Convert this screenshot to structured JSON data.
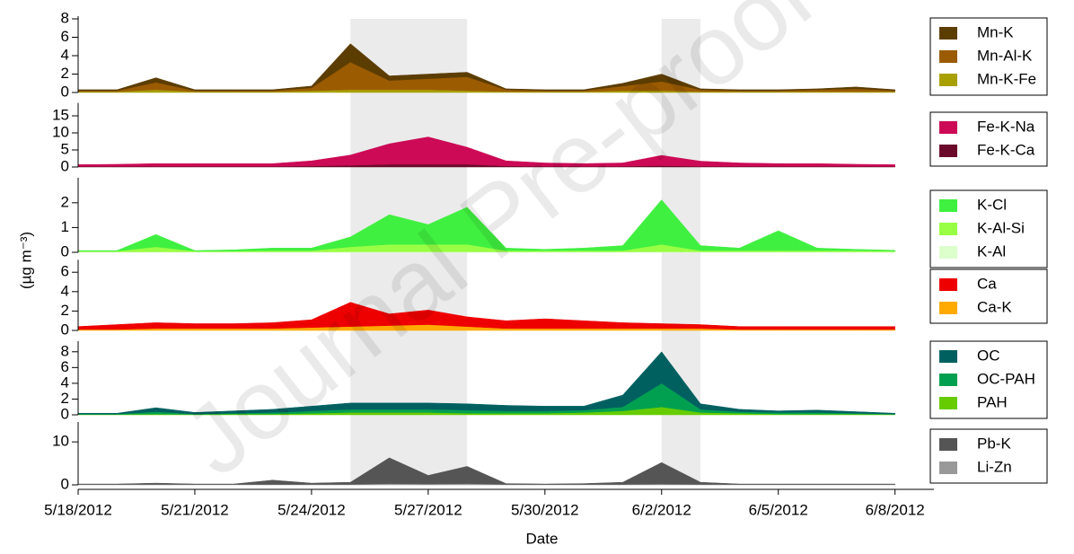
{
  "watermark": "Journal Pre-proof",
  "chart_data": [
    {
      "type": "area",
      "stacked": true,
      "ylim": [
        0,
        8
      ],
      "yticks": [
        0,
        2,
        4,
        6,
        8
      ],
      "x": [
        "5/18/2012",
        "5/19/2012",
        "5/20/2012",
        "5/21/2012",
        "5/22/2012",
        "5/23/2012",
        "5/24/2012",
        "5/25/2012",
        "5/26/2012",
        "5/27/2012",
        "5/28/2012",
        "5/29/2012",
        "5/30/2012",
        "5/31/2012",
        "6/1/2012",
        "6/2/2012",
        "6/3/2012",
        "6/4/2012",
        "6/5/2012",
        "6/6/2012",
        "6/7/2012",
        "6/8/2012"
      ],
      "xlim": [
        "5/18/2012",
        "6/9/2012"
      ],
      "shaded": [
        [
          "5/25/2012",
          "5/28/2012"
        ],
        [
          "6/2/2012",
          "6/3/2012"
        ]
      ],
      "series": [
        {
          "name": "Mn-K",
          "color": "#5c3d00",
          "values": [
            0.1,
            0.1,
            0.5,
            0.1,
            0.1,
            0.1,
            0.2,
            2.0,
            0.5,
            0.5,
            0.5,
            0.1,
            0.1,
            0.1,
            0.3,
            0.8,
            0.1,
            0.1,
            0.1,
            0.1,
            0.2,
            0.1
          ]
        },
        {
          "name": "Mn-Al-K",
          "color": "#9b5b00",
          "values": [
            0.1,
            0.1,
            0.8,
            0.1,
            0.1,
            0.1,
            0.3,
            3.0,
            1.0,
            1.2,
            1.5,
            0.2,
            0.1,
            0.1,
            0.5,
            1.0,
            0.2,
            0.1,
            0.1,
            0.2,
            0.3,
            0.1
          ]
        },
        {
          "name": "Mn-K-Fe",
          "color": "#a8a000",
          "values": [
            0.1,
            0.1,
            0.3,
            0.1,
            0.1,
            0.1,
            0.2,
            0.3,
            0.3,
            0.3,
            0.2,
            0.1,
            0.1,
            0.1,
            0.2,
            0.2,
            0.1,
            0.1,
            0.1,
            0.1,
            0.1,
            0.1
          ]
        }
      ]
    },
    {
      "type": "area",
      "stacked": true,
      "ylim": [
        0,
        18
      ],
      "yticks": [
        0,
        5,
        10,
        15
      ],
      "x": [
        "5/18/2012",
        "5/19/2012",
        "5/20/2012",
        "5/21/2012",
        "5/22/2012",
        "5/23/2012",
        "5/24/2012",
        "5/25/2012",
        "5/26/2012",
        "5/27/2012",
        "5/28/2012",
        "5/29/2012",
        "5/30/2012",
        "5/31/2012",
        "6/1/2012",
        "6/2/2012",
        "6/3/2012",
        "6/4/2012",
        "6/5/2012",
        "6/6/2012",
        "6/7/2012",
        "6/8/2012"
      ],
      "xlim": [
        "5/18/2012",
        "6/9/2012"
      ],
      "shaded": [
        [
          "5/25/2012",
          "5/28/2012"
        ],
        [
          "6/2/2012",
          "6/3/2012"
        ]
      ],
      "series": [
        {
          "name": "Fe-K-Na",
          "color": "#cc0a55",
          "values": [
            0.5,
            0.6,
            0.8,
            0.8,
            0.8,
            0.8,
            1.5,
            3,
            6,
            8,
            5,
            1.5,
            1.0,
            0.8,
            1.0,
            3,
            1.5,
            1.0,
            0.8,
            0.8,
            0.6,
            0.5
          ]
        },
        {
          "name": "Fe-K-Ca",
          "color": "#6b0a2a",
          "values": [
            0.2,
            0.2,
            0.2,
            0.2,
            0.2,
            0.2,
            0.3,
            0.5,
            0.8,
            0.8,
            0.8,
            0.3,
            0.2,
            0.2,
            0.2,
            0.4,
            0.2,
            0.2,
            0.2,
            0.2,
            0.2,
            0.2
          ]
        }
      ]
    },
    {
      "type": "area",
      "stacked": true,
      "ylim": [
        0,
        2.9
      ],
      "yticks": [
        0,
        1,
        2
      ],
      "ylabel": "(µg m⁻³)",
      "x": [
        "5/18/2012",
        "5/19/2012",
        "5/20/2012",
        "5/21/2012",
        "5/22/2012",
        "5/23/2012",
        "5/24/2012",
        "5/25/2012",
        "5/26/2012",
        "5/27/2012",
        "5/28/2012",
        "5/29/2012",
        "5/30/2012",
        "5/31/2012",
        "6/1/2012",
        "6/2/2012",
        "6/3/2012",
        "6/4/2012",
        "6/5/2012",
        "6/6/2012",
        "6/7/2012",
        "6/8/2012"
      ],
      "xlim": [
        "5/18/2012",
        "6/9/2012"
      ],
      "shaded": [
        [
          "5/25/2012",
          "5/28/2012"
        ],
        [
          "6/2/2012",
          "6/3/2012"
        ]
      ],
      "series": [
        {
          "name": "K-Cl",
          "color": "#40f040",
          "values": [
            0.02,
            0.02,
            0.5,
            0.02,
            0.05,
            0.1,
            0.1,
            0.4,
            1.2,
            0.8,
            1.5,
            0.1,
            0.05,
            0.1,
            0.2,
            1.8,
            0.2,
            0.1,
            0.8,
            0.1,
            0.05,
            0.03
          ]
        },
        {
          "name": "K-Al-Si",
          "color": "#99ff44",
          "values": [
            0.03,
            0.03,
            0.2,
            0.03,
            0.03,
            0.05,
            0.05,
            0.2,
            0.3,
            0.3,
            0.3,
            0.05,
            0.05,
            0.05,
            0.05,
            0.3,
            0.05,
            0.05,
            0.05,
            0.05,
            0.05,
            0.03
          ]
        },
        {
          "name": "K-Al",
          "color": "#ddffcc",
          "values": [
            0.02,
            0.02,
            0.02,
            0.02,
            0.02,
            0.02,
            0.02,
            0.02,
            0.02,
            0.02,
            0.02,
            0.02,
            0.02,
            0.02,
            0.02,
            0.02,
            0.02,
            0.02,
            0.02,
            0.02,
            0.02,
            0.02
          ]
        }
      ]
    },
    {
      "type": "area",
      "stacked": true,
      "ylim": [
        0,
        7
      ],
      "yticks": [
        0,
        2,
        4,
        6
      ],
      "x": [
        "5/18/2012",
        "5/19/2012",
        "5/20/2012",
        "5/21/2012",
        "5/22/2012",
        "5/23/2012",
        "5/24/2012",
        "5/25/2012",
        "5/26/2012",
        "5/27/2012",
        "5/28/2012",
        "5/29/2012",
        "5/30/2012",
        "5/31/2012",
        "6/1/2012",
        "6/2/2012",
        "6/3/2012",
        "6/4/2012",
        "6/5/2012",
        "6/6/2012",
        "6/7/2012",
        "6/8/2012"
      ],
      "xlim": [
        "5/18/2012",
        "6/9/2012"
      ],
      "shaded": [
        [
          "5/25/2012",
          "5/28/2012"
        ],
        [
          "6/2/2012",
          "6/3/2012"
        ]
      ],
      "series": [
        {
          "name": "Ca",
          "color": "#ee0000",
          "values": [
            0.3,
            0.5,
            0.6,
            0.5,
            0.5,
            0.6,
            0.8,
            2.5,
            1.2,
            1.5,
            1.0,
            0.8,
            1.0,
            0.8,
            0.6,
            0.5,
            0.4,
            0.3,
            0.3,
            0.3,
            0.3,
            0.3
          ]
        },
        {
          "name": "Ca-K",
          "color": "#ffaa00",
          "values": [
            0.1,
            0.1,
            0.2,
            0.2,
            0.2,
            0.2,
            0.3,
            0.4,
            0.5,
            0.6,
            0.4,
            0.2,
            0.2,
            0.2,
            0.2,
            0.2,
            0.2,
            0.1,
            0.1,
            0.1,
            0.1,
            0.1
          ]
        }
      ]
    },
    {
      "type": "area",
      "stacked": true,
      "ylim": [
        0,
        9
      ],
      "yticks": [
        0,
        2,
        4,
        6,
        8
      ],
      "x": [
        "5/18/2012",
        "5/19/2012",
        "5/20/2012",
        "5/21/2012",
        "5/22/2012",
        "5/23/2012",
        "5/24/2012",
        "5/25/2012",
        "5/26/2012",
        "5/27/2012",
        "5/28/2012",
        "5/29/2012",
        "5/30/2012",
        "5/31/2012",
        "6/1/2012",
        "6/2/2012",
        "6/3/2012",
        "6/4/2012",
        "6/5/2012",
        "6/6/2012",
        "6/7/2012",
        "6/8/2012"
      ],
      "xlim": [
        "5/18/2012",
        "6/9/2012"
      ],
      "shaded": [
        [
          "5/25/2012",
          "5/28/2012"
        ],
        [
          "6/2/2012",
          "6/3/2012"
        ]
      ],
      "series": [
        {
          "name": "OC",
          "color": "#006060",
          "values": [
            0.1,
            0.1,
            0.5,
            0.2,
            0.3,
            0.4,
            0.6,
            0.8,
            0.8,
            0.8,
            0.8,
            0.7,
            0.6,
            0.5,
            1.5,
            4.0,
            0.7,
            0.3,
            0.2,
            0.3,
            0.2,
            0.1
          ]
        },
        {
          "name": "OC-PAH",
          "color": "#00a050",
          "values": [
            0.05,
            0.05,
            0.3,
            0.05,
            0.1,
            0.2,
            0.3,
            0.4,
            0.4,
            0.4,
            0.4,
            0.3,
            0.3,
            0.3,
            0.5,
            3.0,
            0.4,
            0.2,
            0.2,
            0.2,
            0.1,
            0.05
          ]
        },
        {
          "name": "PAH",
          "color": "#66cc00",
          "values": [
            0.05,
            0.05,
            0.1,
            0.05,
            0.1,
            0.1,
            0.2,
            0.3,
            0.3,
            0.3,
            0.2,
            0.2,
            0.2,
            0.3,
            0.5,
            1.0,
            0.3,
            0.2,
            0.1,
            0.1,
            0.1,
            0.05
          ]
        }
      ]
    },
    {
      "type": "area",
      "stacked": true,
      "ylim": [
        0,
        14
      ],
      "yticks": [
        0,
        10
      ],
      "x": [
        "5/18/2012",
        "5/19/2012",
        "5/20/2012",
        "5/21/2012",
        "5/22/2012",
        "5/23/2012",
        "5/24/2012",
        "5/25/2012",
        "5/26/2012",
        "5/27/2012",
        "5/28/2012",
        "5/29/2012",
        "5/30/2012",
        "5/31/2012",
        "6/1/2012",
        "6/2/2012",
        "6/3/2012",
        "6/4/2012",
        "6/5/2012",
        "6/6/2012",
        "6/7/2012",
        "6/8/2012"
      ],
      "xlim": [
        "5/18/2012",
        "6/9/2012"
      ],
      "shaded": [
        [
          "5/25/2012",
          "5/28/2012"
        ],
        [
          "6/2/2012",
          "6/3/2012"
        ]
      ],
      "xticks": [
        "5/18/2012",
        "5/21/2012",
        "5/24/2012",
        "5/27/2012",
        "5/30/2012",
        "6/2/2012",
        "6/5/2012",
        "6/8/2012"
      ],
      "xlabel": "Date",
      "series": [
        {
          "name": "Pb-K",
          "color": "#555555",
          "values": [
            0.1,
            0.1,
            0.3,
            0.1,
            0.1,
            1.0,
            0.3,
            0.5,
            6,
            2,
            4,
            0.2,
            0.1,
            0.2,
            0.5,
            5,
            0.5,
            0.1,
            0.1,
            0.1,
            0.1,
            0.1
          ]
        },
        {
          "name": "Li-Zn",
          "color": "#999999",
          "values": [
            0.1,
            0.1,
            0.1,
            0.1,
            0.1,
            0.1,
            0.1,
            0.1,
            0.3,
            0.2,
            0.3,
            0.1,
            0.1,
            0.1,
            0.1,
            0.2,
            0.1,
            0.1,
            0.1,
            0.1,
            0.1,
            0.1
          ]
        }
      ]
    }
  ]
}
